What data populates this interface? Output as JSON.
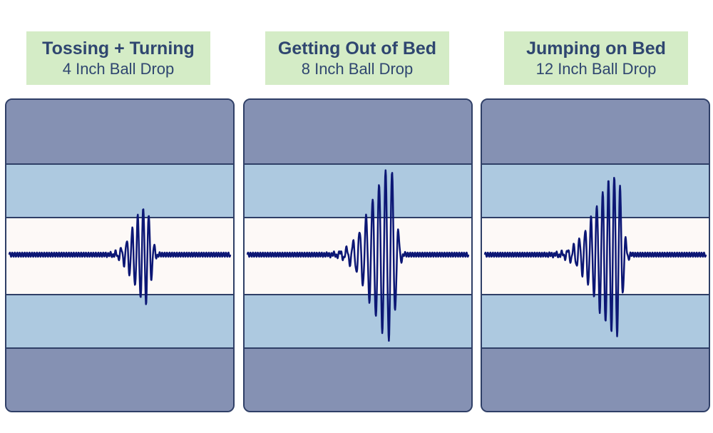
{
  "colors": {
    "title_bg": "#d4ecc6",
    "title_text": "#2f4670",
    "outer_band": "#8591b3",
    "middle_band": "#adc9e0",
    "center_band": "#fdf9f7",
    "band_line": "#2f3f67",
    "waveform": "#0c1775"
  },
  "chart_data": [
    {
      "type": "line",
      "title": "Tossing + Turning",
      "subtitle": "4 Inch Ball Drop",
      "amplitude": 0.45,
      "burst_center": 0.62,
      "burst_width": 0.18,
      "cycles": 40
    },
    {
      "type": "line",
      "title": "Getting Out of Bed",
      "subtitle": "8 Inch Ball Drop",
      "amplitude": 0.8,
      "burst_center": 0.65,
      "burst_width": 0.28,
      "cycles": 34
    },
    {
      "type": "line",
      "title": "Jumping on Bed",
      "subtitle": "12 Inch Ball Drop",
      "amplitude": 0.75,
      "burst_center": 0.6,
      "burst_width": 0.3,
      "cycles": 38
    }
  ]
}
